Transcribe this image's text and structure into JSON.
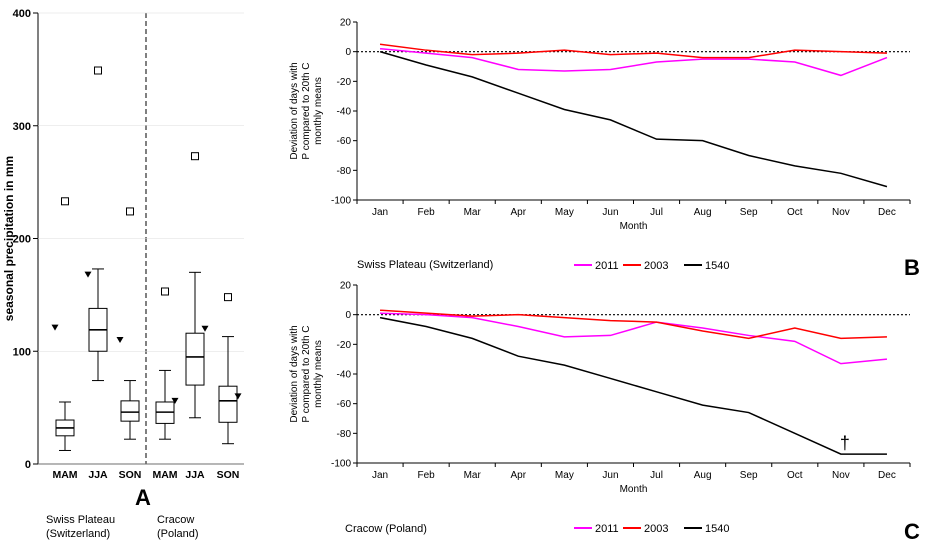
{
  "colors": {
    "y2011": "#ff00ff",
    "y2003": "#ff0000",
    "y1540": "#000000",
    "axis": "#000000",
    "grid": "#000000"
  },
  "chart_data": [
    {
      "panel": "A",
      "type": "box",
      "panel_label": "A",
      "ylabel": "seasonal precipitation in mm",
      "ylim": [
        0,
        400
      ],
      "yticks": [
        0,
        100,
        200,
        300,
        400
      ],
      "group_labels": [
        "Swiss Plateau\n(Switzerland)",
        "Cracow\n(Poland)"
      ],
      "boxes": [
        {
          "group": 0,
          "label": "MAM",
          "whisker_low": 12,
          "q1": 25,
          "median": 32,
          "q3": 39,
          "whisker_high": 55,
          "outlier_square": 233,
          "triangle": 121
        },
        {
          "group": 0,
          "label": "JJA",
          "whisker_low": 74,
          "q1": 100,
          "median": 119,
          "q3": 138,
          "whisker_high": 173,
          "outlier_square": 349,
          "triangle": 168
        },
        {
          "group": 0,
          "label": "SON",
          "whisker_low": 22,
          "q1": 38,
          "median": 46,
          "q3": 56,
          "whisker_high": 74,
          "outlier_square": 224,
          "triangle": 110
        },
        {
          "group": 1,
          "label": "MAM",
          "whisker_low": 22,
          "q1": 36,
          "median": 46,
          "q3": 55,
          "whisker_high": 83,
          "outlier_square": 153,
          "triangle": 56
        },
        {
          "group": 1,
          "label": "JJA",
          "whisker_low": 41,
          "q1": 70,
          "median": 95,
          "q3": 116,
          "whisker_high": 170,
          "outlier_square": 273,
          "triangle": 120
        },
        {
          "group": 1,
          "label": "SON",
          "whisker_low": 18,
          "q1": 37,
          "median": 56,
          "q3": 69,
          "whisker_high": 113,
          "outlier_square": 148,
          "triangle": 60
        }
      ]
    },
    {
      "panel": "B",
      "type": "line",
      "panel_label": "B",
      "region": "Swiss Plateau (Switzerland)",
      "ylabel": [
        "Deviation of days with",
        "P compared to 20th C",
        "monthly means"
      ],
      "xlabel": "Month",
      "ylim": [
        -100,
        20
      ],
      "yticks": [
        -100,
        -80,
        -60,
        -40,
        -20,
        0,
        20
      ],
      "categories": [
        "Jan",
        "Feb",
        "Mar",
        "Apr",
        "May",
        "Jun",
        "Jul",
        "Aug",
        "Sep",
        "Oct",
        "Nov",
        "Dec"
      ],
      "series": [
        {
          "name": "2011",
          "color_key": "y2011",
          "values": [
            2,
            -1,
            -4,
            -12,
            -13,
            -12,
            -7,
            -5,
            -5,
            -7,
            -16,
            -4
          ]
        },
        {
          "name": "2003",
          "color_key": "y2003",
          "values": [
            5,
            1,
            -2,
            -1,
            1,
            -2,
            -1,
            -4,
            -4,
            1,
            0,
            -1
          ]
        },
        {
          "name": "1540",
          "color_key": "y1540",
          "values": [
            0,
            -9,
            -17,
            -28,
            -39,
            -46,
            -59,
            -60,
            -70,
            -77,
            -82,
            -91
          ]
        }
      ]
    },
    {
      "panel": "C",
      "type": "line",
      "panel_label": "C",
      "region": "Cracow (Poland)",
      "ylabel": [
        "Deviation of days with",
        "P compared to 20th C",
        "monthly means"
      ],
      "xlabel": "Month",
      "ylim": [
        -100,
        20
      ],
      "yticks": [
        -100,
        -80,
        -60,
        -40,
        -20,
        0,
        20
      ],
      "categories": [
        "Jan",
        "Feb",
        "Mar",
        "Apr",
        "May",
        "Jun",
        "Jul",
        "Aug",
        "Sep",
        "Oct",
        "Nov",
        "Dec"
      ],
      "annotation": {
        "text": "†",
        "month": "Nov",
        "value": -94
      },
      "series": [
        {
          "name": "2011",
          "color_key": "y2011",
          "values": [
            1,
            0,
            -2,
            -8,
            -15,
            -14,
            -5,
            -9,
            -14,
            -18,
            -33,
            -30
          ]
        },
        {
          "name": "2003",
          "color_key": "y2003",
          "values": [
            3,
            1,
            -1,
            0,
            -2,
            -4,
            -5,
            -11,
            -16,
            -9,
            -16,
            -15
          ]
        },
        {
          "name": "1540",
          "color_key": "y1540",
          "values": [
            -2,
            -8,
            -16,
            -28,
            -34,
            -43,
            -52,
            -61,
            -66,
            -80,
            -94,
            -94
          ]
        }
      ]
    }
  ]
}
